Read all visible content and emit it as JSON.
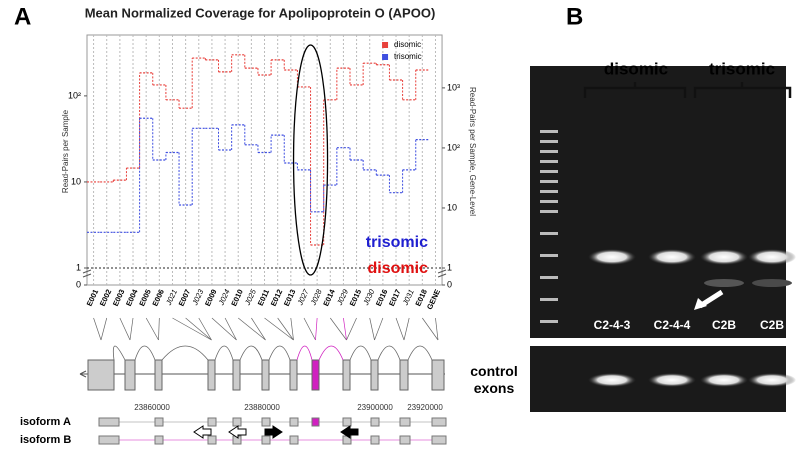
{
  "panel_labels": [
    "A",
    "B"
  ],
  "chart_data": {
    "type": "step",
    "title": "Mean Normalized Coverage for Apolipoprotein O (APOO)",
    "y_label": "Read-Pairs per Sample",
    "y2_label": "Read-Pairs per Sample, Gene-Level",
    "categories": [
      "E001",
      "E002",
      "E003",
      "E004",
      "E005",
      "E006",
      "J021",
      "E007",
      "J023",
      "E009",
      "J024",
      "E010",
      "J025",
      "E011",
      "E012",
      "E013",
      "J027",
      "J028",
      "E014",
      "J029",
      "E015",
      "J030",
      "E016",
      "E017",
      "J031",
      "E018",
      "GENE"
    ],
    "series": [
      {
        "name": "disomic",
        "color": "#e8413c",
        "values": [
          10,
          10,
          10.5,
          14.5,
          185,
          134,
          90,
          72,
          275,
          262,
          190,
          300,
          210,
          175,
          262,
          200,
          127,
          1.85,
          90,
          210,
          134,
          240,
          230,
          153,
          90,
          200,
          null
        ]
      },
      {
        "name": "trisomic",
        "color": "#3f4fe0",
        "values": [
          2.6,
          2.6,
          2.6,
          2.6,
          55,
          18,
          22,
          5.4,
          42,
          42,
          23.5,
          46,
          27,
          22,
          35,
          16.6,
          13.8,
          4.5,
          9.2,
          25,
          18,
          13.8,
          12,
          7.5,
          13.8,
          31,
          null
        ]
      }
    ],
    "log_scale": true,
    "ylim": [
      1,
      510
    ],
    "yticks": [
      {
        "value": 0,
        "label": "0"
      },
      1,
      10,
      {
        "value": 100,
        "label": "10²"
      }
    ],
    "y2lim": [
      1,
      7600
    ],
    "y2ticks": [
      {
        "value": 0,
        "label": "0"
      },
      1,
      10,
      {
        "value": 100,
        "label": "10²"
      },
      {
        "value": 1000,
        "label": "10³"
      }
    ],
    "grid": true,
    "legend": "top-right",
    "annotations": [
      {
        "text": "trisomic",
        "color": "#1f1fd0"
      },
      {
        "text": "disomic",
        "color": "#e01010"
      }
    ]
  },
  "gene_model": {
    "coordinate_labels": [
      "23860000",
      "23880000",
      "23900000",
      "23920000"
    ],
    "isoforms": [
      "isoform A",
      "isoform B"
    ]
  },
  "gel": {
    "groups": [
      "disomic",
      "trisomic"
    ],
    "lanes": [
      "C2-4-3",
      "C2-4-4",
      "C2B",
      "C2B"
    ],
    "control_label": "control exons"
  }
}
